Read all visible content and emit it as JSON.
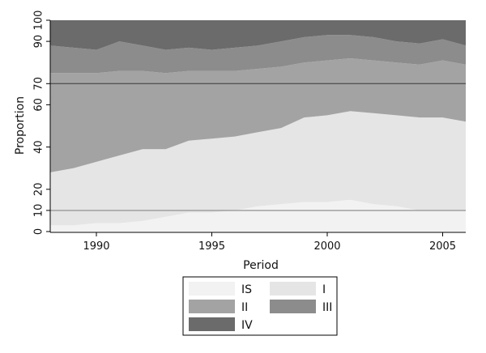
{
  "chart_data": {
    "type": "area",
    "stacked": true,
    "xlabel": "Period",
    "ylabel": "Proportion",
    "xlim": [
      1988,
      2006
    ],
    "ylim": [
      0,
      100
    ],
    "x_ticks": [
      1990,
      1995,
      2000,
      2005
    ],
    "y_ticks": [
      0,
      10,
      20,
      40,
      60,
      70,
      90,
      100
    ],
    "reference_lines": [
      10,
      70
    ],
    "grid": false,
    "legend_position": "bottom",
    "x": [
      1988,
      1989,
      1990,
      1991,
      1992,
      1993,
      1994,
      1995,
      1996,
      1997,
      1998,
      1999,
      2000,
      2001,
      2002,
      2003,
      2004,
      2005,
      2006
    ],
    "series": [
      {
        "name": "IS",
        "color": "#f2f2f2",
        "values": [
          3,
          3,
          4,
          4,
          5,
          7,
          9,
          9,
          10,
          12,
          13,
          14,
          14,
          15,
          13,
          12,
          10,
          10,
          10
        ]
      },
      {
        "name": "I",
        "color": "#e5e5e5",
        "values": [
          25,
          27,
          29,
          32,
          34,
          32,
          34,
          35,
          35,
          35,
          36,
          40,
          41,
          42,
          43,
          43,
          44,
          44,
          42
        ]
      },
      {
        "name": "II",
        "color": "#a3a3a3",
        "values": [
          47,
          45,
          42,
          40,
          37,
          36,
          33,
          32,
          31,
          30,
          29,
          26,
          26,
          25,
          25,
          25,
          25,
          27,
          27
        ]
      },
      {
        "name": "III",
        "color": "#8c8c8c",
        "values": [
          13,
          12,
          11,
          14,
          12,
          11,
          11,
          10,
          11,
          11,
          12,
          12,
          12,
          11,
          11,
          10,
          10,
          10,
          9
        ]
      },
      {
        "name": "IV",
        "color": "#6b6b6b",
        "values": [
          12,
          13,
          14,
          10,
          12,
          14,
          13,
          14,
          13,
          12,
          10,
          8,
          7,
          7,
          8,
          10,
          11,
          9,
          12
        ]
      }
    ]
  }
}
